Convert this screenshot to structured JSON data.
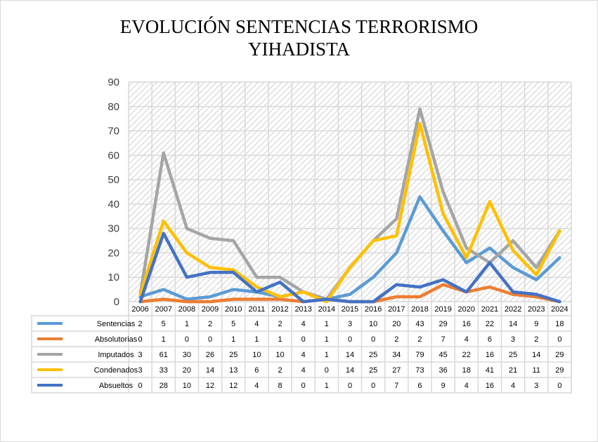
{
  "chart_data": {
    "type": "line",
    "title": [
      "EVOLUCIÓN SENTENCIAS TERRORISMO",
      "YIHADISTA"
    ],
    "ylim": [
      0,
      90
    ],
    "yticks": [
      0,
      10,
      20,
      30,
      40,
      50,
      60,
      70,
      80,
      90
    ],
    "grid": true,
    "legend": "data-table",
    "categories": [
      "2006",
      "2007",
      "2008",
      "2009",
      "2010",
      "2011",
      "2012",
      "2013",
      "2014",
      "2015",
      "2016",
      "2017",
      "2018",
      "2019",
      "2020",
      "2021",
      "2022",
      "2023",
      "2024"
    ],
    "series": [
      {
        "name": "Sentencias",
        "color": "#5b9bd5",
        "values": [
          2,
          5,
          1,
          2,
          5,
          4,
          2,
          4,
          1,
          3,
          10,
          20,
          43,
          29,
          16,
          22,
          14,
          9,
          18
        ]
      },
      {
        "name": "Absolutorias",
        "color": "#ed7d31",
        "values": [
          0,
          1,
          0,
          0,
          1,
          1,
          1,
          0,
          1,
          0,
          0,
          2,
          2,
          7,
          4,
          6,
          3,
          2,
          0
        ]
      },
      {
        "name": "Imputados",
        "color": "#a5a5a5",
        "values": [
          3,
          61,
          30,
          26,
          25,
          10,
          10,
          4,
          1,
          14,
          25,
          34,
          79,
          45,
          22,
          16,
          25,
          14,
          29
        ]
      },
      {
        "name": "Condenados",
        "color": "#ffc000",
        "values": [
          3,
          33,
          20,
          14,
          13,
          6,
          2,
          4,
          0,
          14,
          25,
          27,
          73,
          36,
          18,
          41,
          21,
          11,
          29
        ]
      },
      {
        "name": "Absueltos",
        "color": "#4472c4",
        "values": [
          0,
          28,
          10,
          12,
          12,
          4,
          8,
          0,
          1,
          0,
          0,
          7,
          6,
          9,
          4,
          16,
          4,
          3,
          0
        ]
      }
    ]
  }
}
